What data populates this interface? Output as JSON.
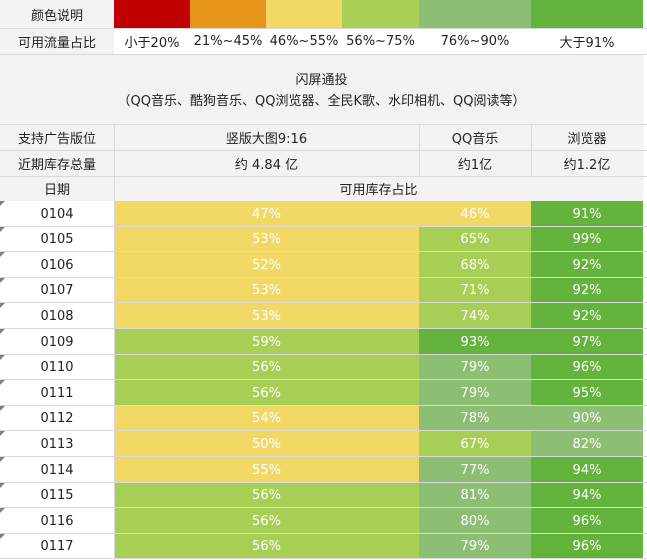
{
  "legend": {
    "label": "颜色说明",
    "colors": [
      "#c00000",
      "#e6951a",
      "#f2d865",
      "#a8cf55",
      "#8cbf73",
      "#63b33c"
    ]
  },
  "ranges": {
    "label": "可用流量占比",
    "items": [
      "小于20%",
      "21%~45%",
      "46%~55%",
      "56%~75%",
      "76%~90%",
      "大于91%"
    ]
  },
  "product": {
    "title": "闪屏通投",
    "subtitle": "（QQ音乐、酷狗音乐、QQ浏览器、全民K歌、水印相机、QQ阅读等）"
  },
  "table": {
    "slots_label": "支持广告版位",
    "inventory_label": "近期库存总量",
    "date_label": "日期",
    "ratio_label": "可用库存占比",
    "columns": [
      "竖版大图9:16",
      "QQ音乐",
      "浏览器"
    ],
    "inventory": [
      "约 4.84 亿",
      "约1亿",
      "约1.2亿"
    ],
    "rows": [
      {
        "date": "0104",
        "vals": [
          "47%",
          "46%",
          "91%"
        ]
      },
      {
        "date": "0105",
        "vals": [
          "53%",
          "65%",
          "99%"
        ]
      },
      {
        "date": "0106",
        "vals": [
          "52%",
          "68%",
          "92%"
        ]
      },
      {
        "date": "0107",
        "vals": [
          "53%",
          "71%",
          "92%"
        ]
      },
      {
        "date": "0108",
        "vals": [
          "53%",
          "74%",
          "92%"
        ]
      },
      {
        "date": "0109",
        "vals": [
          "59%",
          "93%",
          "97%"
        ]
      },
      {
        "date": "0110",
        "vals": [
          "56%",
          "79%",
          "96%"
        ]
      },
      {
        "date": "0111",
        "vals": [
          "56%",
          "79%",
          "95%"
        ]
      },
      {
        "date": "0112",
        "vals": [
          "54%",
          "78%",
          "90%"
        ]
      },
      {
        "date": "0113",
        "vals": [
          "50%",
          "67%",
          "82%"
        ]
      },
      {
        "date": "0114",
        "vals": [
          "55%",
          "77%",
          "94%"
        ]
      },
      {
        "date": "0115",
        "vals": [
          "56%",
          "81%",
          "94%"
        ]
      },
      {
        "date": "0116",
        "vals": [
          "56%",
          "80%",
          "96%"
        ]
      },
      {
        "date": "0117",
        "vals": [
          "56%",
          "79%",
          "96%"
        ]
      }
    ],
    "cell_colors": [
      [
        "#f2d865",
        "#f2d865",
        "#63b33c"
      ],
      [
        "#f2d865",
        "#a8cf55",
        "#63b33c"
      ],
      [
        "#f2d865",
        "#a8cf55",
        "#63b33c"
      ],
      [
        "#f2d865",
        "#a8cf55",
        "#63b33c"
      ],
      [
        "#f2d865",
        "#a8cf55",
        "#63b33c"
      ],
      [
        "#a8cf55",
        "#63b33c",
        "#63b33c"
      ],
      [
        "#a8cf55",
        "#8cbf73",
        "#63b33c"
      ],
      [
        "#a8cf55",
        "#8cbf73",
        "#63b33c"
      ],
      [
        "#f2d865",
        "#8cbf73",
        "#8cbf73"
      ],
      [
        "#f2d865",
        "#a8cf55",
        "#8cbf73"
      ],
      [
        "#f2d865",
        "#8cbf73",
        "#63b33c"
      ],
      [
        "#a8cf55",
        "#8cbf73",
        "#63b33c"
      ],
      [
        "#a8cf55",
        "#8cbf73",
        "#63b33c"
      ],
      [
        "#a8cf55",
        "#8cbf73",
        "#63b33c"
      ]
    ]
  }
}
